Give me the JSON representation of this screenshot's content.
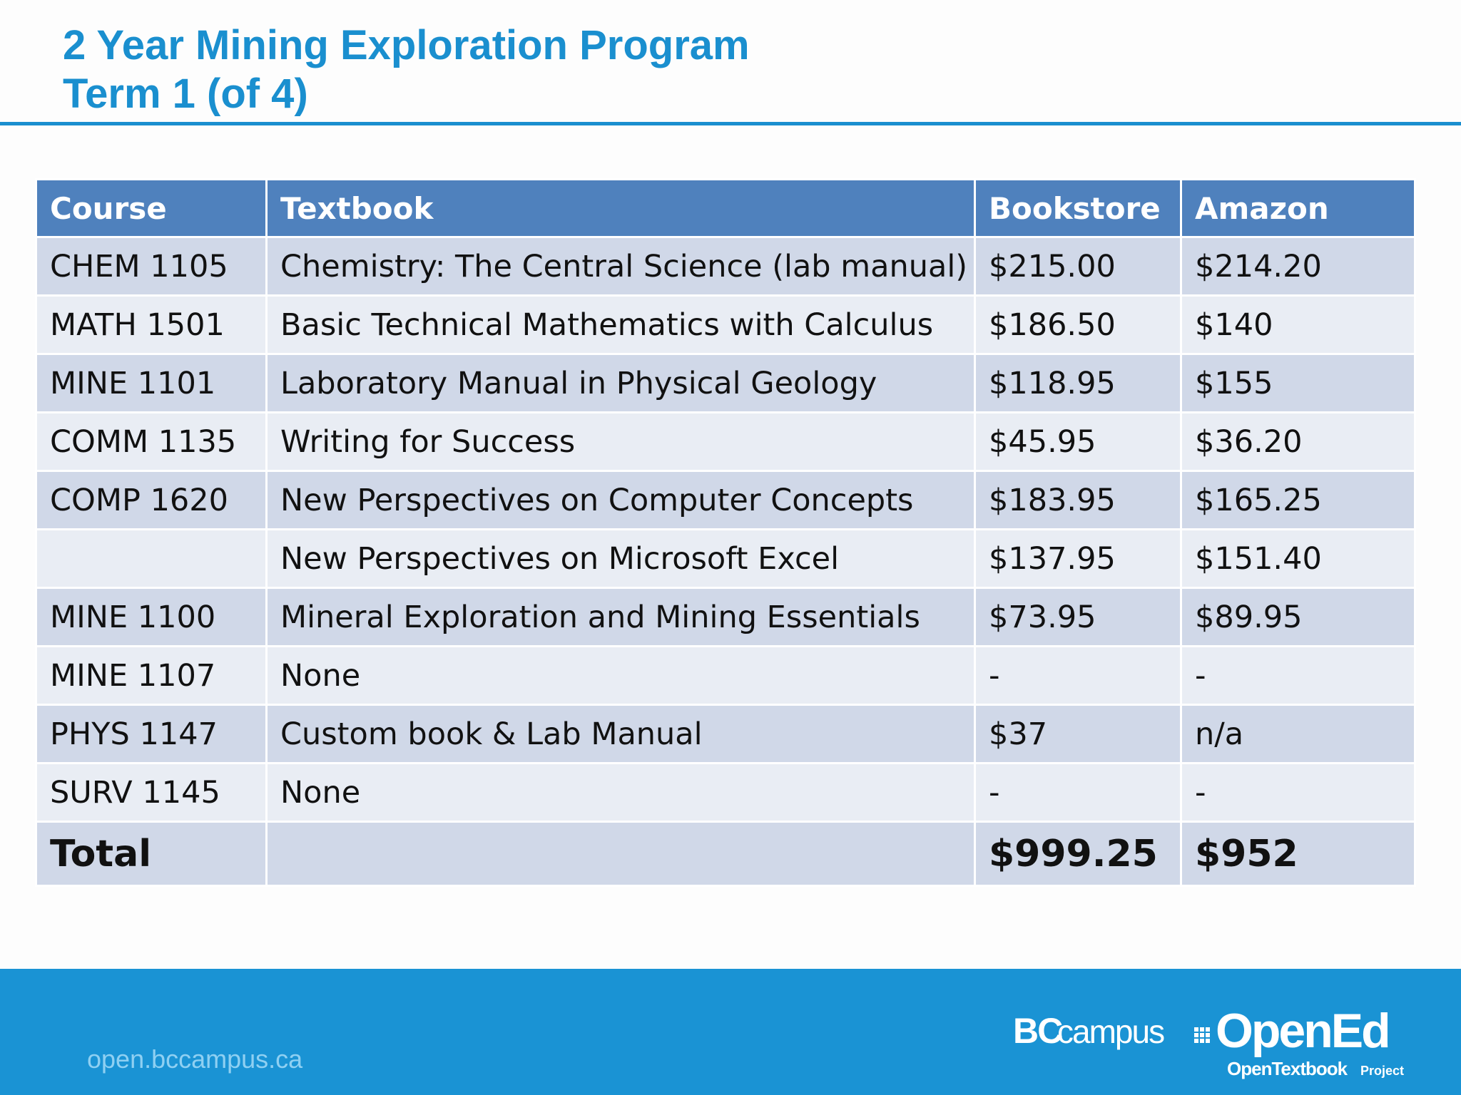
{
  "slide": {
    "title_line1": "2 Year Mining Exploration Program",
    "title_line2": "Term 1 (of 4)"
  },
  "table": {
    "headers": {
      "course": "Course",
      "textbook": "Textbook",
      "bookstore": "Bookstore",
      "amazon": "Amazon"
    },
    "rows": [
      {
        "course": "CHEM 1105",
        "textbook": "Chemistry: The Central Science (lab manual)",
        "bookstore": "$215.00",
        "amazon": "$214.20"
      },
      {
        "course": "MATH 1501",
        "textbook": "Basic Technical Mathematics with Calculus",
        "bookstore": "$186.50",
        "amazon": "$140"
      },
      {
        "course": "MINE 1101",
        "textbook": "Laboratory Manual in Physical Geology",
        "bookstore": "$118.95",
        "amazon": "$155"
      },
      {
        "course": "COMM 1135",
        "textbook": "Writing for Success",
        "bookstore": "$45.95",
        "amazon": "$36.20"
      },
      {
        "course": "COMP 1620",
        "textbook": "New Perspectives on Computer Concepts",
        "bookstore": "$183.95",
        "amazon": "$165.25"
      },
      {
        "course": "",
        "textbook": "New Perspectives on Microsoft Excel",
        "bookstore": "$137.95",
        "amazon": "$151.40"
      },
      {
        "course": "MINE 1100",
        "textbook": "Mineral Exploration and Mining Essentials",
        "bookstore": "$73.95",
        "amazon": "$89.95"
      },
      {
        "course": "MINE 1107",
        "textbook": "None",
        "bookstore": "-",
        "amazon": "-"
      },
      {
        "course": "PHYS 1147",
        "textbook": "Custom book & Lab Manual",
        "bookstore": "$37",
        "amazon": "n/a"
      },
      {
        "course": "SURV 1145",
        "textbook": "None",
        "bookstore": "-",
        "amazon": "-"
      }
    ],
    "total": {
      "label": "Total",
      "textbook": "",
      "bookstore": "$999.25",
      "amazon": "$952"
    }
  },
  "footer": {
    "url": "open.bccampus.ca",
    "logo_bc": "BC",
    "logo_campus": "campus",
    "logo_opened": "OpenEd",
    "logo_tagline": "OpenTextbook",
    "logo_tagline_small": "Project"
  },
  "colors": {
    "title": "#1a8fcf",
    "header_bg": "#4f81bd",
    "row_odd": "#d0d8e8",
    "row_even": "#e9edf4",
    "footer_bg": "#1a93d4",
    "footer_url": "#8fd0f2"
  }
}
